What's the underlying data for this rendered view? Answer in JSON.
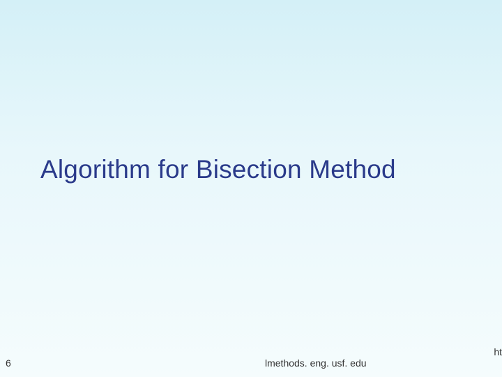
{
  "slide": {
    "title": "Algorithm for Bisection Method",
    "page_number": "6",
    "footer_url": "lmethods. eng. usf. edu",
    "footer_right": "ht",
    "background_gradient_top": "#d4f0f7",
    "background_gradient_bottom": "#f5fcfd",
    "title_color": "#2a3a8a",
    "title_fontsize": 37,
    "footer_color": "#333333",
    "footer_fontsize": 14
  }
}
